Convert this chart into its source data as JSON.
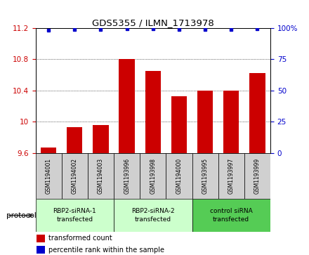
{
  "title": "GDS5355 / ILMN_1713978",
  "samples": [
    "GSM1194001",
    "GSM1194002",
    "GSM1194003",
    "GSM1193996",
    "GSM1193998",
    "GSM1194000",
    "GSM1193995",
    "GSM1193997",
    "GSM1193999"
  ],
  "bar_values": [
    9.67,
    9.93,
    9.96,
    10.8,
    10.65,
    10.33,
    10.4,
    10.4,
    10.62
  ],
  "percentile_values": [
    98,
    99,
    99,
    99.5,
    99.5,
    99,
    99,
    99,
    99.5
  ],
  "ylim_left": [
    9.6,
    11.2
  ],
  "ylim_right": [
    0,
    100
  ],
  "yticks_left": [
    9.6,
    10.0,
    10.4,
    10.8,
    11.2
  ],
  "ytick_labels_left": [
    "9.6",
    "10",
    "10.4",
    "10.8",
    "11.2"
  ],
  "yticks_right": [
    0,
    25,
    50,
    75,
    100
  ],
  "ytick_labels_right": [
    "0",
    "25",
    "50",
    "75",
    "100%"
  ],
  "group_colors": [
    "#ccffcc",
    "#ccffcc",
    "#55cc55"
  ],
  "group_labels": [
    "RBP2-siRNA-1\ntransfected",
    "RBP2-siRNA-2\ntransfected",
    "control siRNA\ntransfected"
  ],
  "group_ranges": [
    [
      0,
      3
    ],
    [
      3,
      6
    ],
    [
      6,
      9
    ]
  ],
  "bar_color": "#cc0000",
  "dot_color": "#0000cc",
  "bar_width": 0.6,
  "sample_bg": "#d0d0d0",
  "legend_bar_label": "transformed count",
  "legend_dot_label": "percentile rank within the sample",
  "protocol_label": "protocol"
}
